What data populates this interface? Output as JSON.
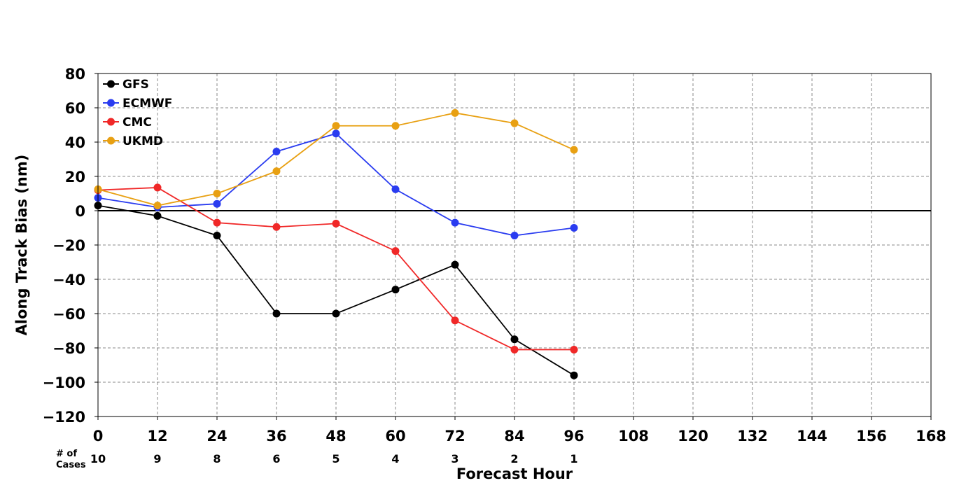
{
  "chart_data": {
    "type": "line",
    "title": "",
    "xlabel": "Forecast Hour",
    "ylabel": "Along Track Bias (nm)",
    "x_ticks": [
      0,
      12,
      24,
      36,
      48,
      60,
      72,
      84,
      96,
      108,
      120,
      132,
      144,
      156,
      168
    ],
    "y_ticks": [
      80,
      60,
      40,
      20,
      0,
      -20,
      -40,
      -60,
      -80,
      -100,
      -120
    ],
    "y_tick_labels": [
      "80",
      "60",
      "40",
      "20",
      "0",
      "−20",
      "−40",
      "−60",
      "−80",
      "−100",
      "−120"
    ],
    "xlim": [
      0,
      168
    ],
    "ylim": [
      -120,
      80
    ],
    "grid": true,
    "legend_position": "top-left",
    "x": [
      0,
      12,
      24,
      36,
      48,
      60,
      72,
      84,
      96
    ],
    "series": [
      {
        "name": "GFS",
        "color": "#000000",
        "values": [
          3,
          -3,
          -14.5,
          -60,
          -60,
          -46,
          -31.5,
          -75,
          -96
        ]
      },
      {
        "name": "ECMWF",
        "color": "#2a3cf0",
        "values": [
          7.5,
          2,
          4,
          34.5,
          45,
          12.5,
          -7,
          -14.5,
          -10
        ]
      },
      {
        "name": "CMC",
        "color": "#f02828",
        "values": [
          12,
          13.5,
          -7,
          -9.5,
          -7.5,
          -23.5,
          -64,
          -81,
          -81
        ]
      },
      {
        "name": "UKMD",
        "color": "#e8a012",
        "values": [
          12.5,
          3,
          10,
          23,
          49.5,
          49.5,
          57,
          51,
          35.5
        ]
      }
    ],
    "cases": {
      "label_line1": "# of",
      "label_line2": "Cases",
      "x": [
        0,
        12,
        24,
        36,
        48,
        60,
        72,
        84,
        96
      ],
      "counts": [
        "10",
        "9",
        "8",
        "6",
        "5",
        "4",
        "3",
        "2",
        "1"
      ]
    }
  }
}
